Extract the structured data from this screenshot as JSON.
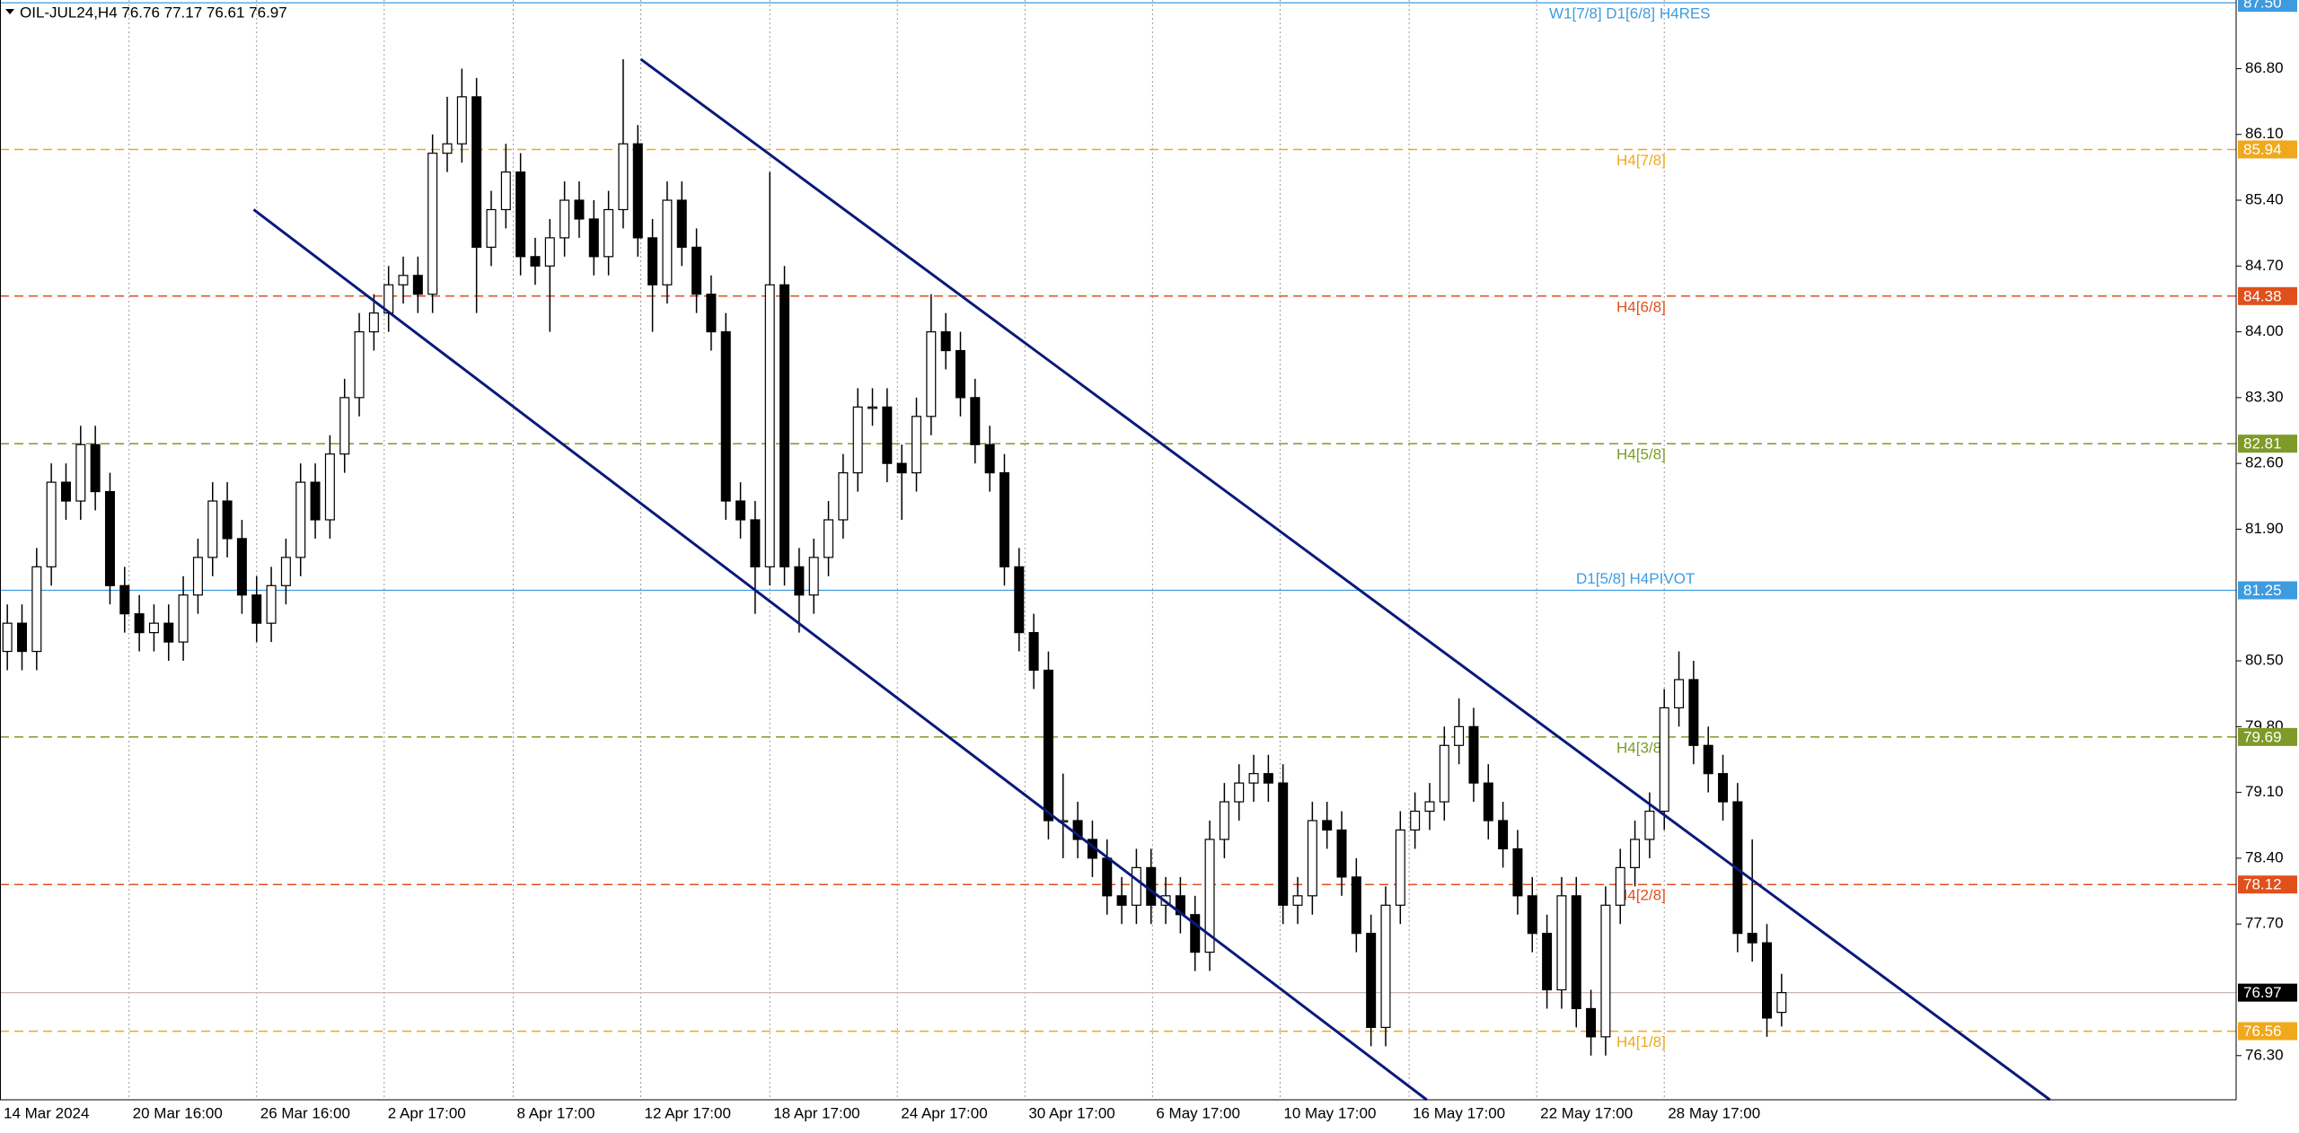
{
  "chart_data": {
    "type": "candlestick",
    "title": "OIL-JUL24,H4  76.76 77.17 76.61 76.97",
    "open": [
      80.6,
      80.9,
      80.6,
      81.5,
      82.4,
      82.2,
      82.8,
      82.3,
      81.3,
      81.0,
      80.8,
      80.9,
      80.7,
      81.2,
      81.6,
      82.2,
      81.8,
      81.2,
      80.9,
      81.3,
      81.6,
      82.4,
      82.0,
      82.7,
      83.3,
      84.0,
      84.2,
      84.5,
      84.6,
      84.4,
      85.9,
      86.0,
      86.5,
      84.9,
      85.3,
      85.7,
      84.8,
      84.7,
      85.0,
      85.4,
      85.2,
      84.8,
      85.3,
      86.0,
      85.0,
      84.5,
      85.4,
      84.9,
      84.4,
      84.0,
      82.2,
      82.0,
      81.5,
      84.5,
      81.5,
      81.2,
      81.6,
      82.0,
      82.5,
      83.2,
      83.2,
      82.6,
      82.5,
      83.1,
      84.0,
      83.8,
      83.3,
      82.8,
      82.5,
      81.5,
      80.8,
      80.4,
      78.8,
      78.8,
      78.6,
      78.4,
      78.0,
      77.9,
      78.3,
      77.9,
      78.0,
      77.8,
      77.4,
      78.6,
      79.0,
      79.2,
      79.3,
      79.2,
      77.9,
      78.0,
      78.8,
      78.7,
      78.2,
      77.6,
      76.6,
      77.9,
      78.7,
      78.9,
      79.0,
      79.6,
      79.8,
      79.2,
      78.8,
      78.5,
      78.0,
      77.6,
      77.0,
      78.0,
      76.8,
      76.5,
      77.9,
      78.3,
      78.6,
      78.9,
      80.0,
      80.3,
      79.6,
      79.3,
      79.0,
      77.6,
      77.5,
      76.76
    ],
    "high": [
      81.1,
      81.1,
      81.7,
      82.6,
      82.6,
      83.0,
      83.0,
      82.5,
      81.5,
      81.2,
      81.1,
      81.1,
      81.4,
      81.8,
      82.4,
      82.4,
      82.0,
      81.4,
      81.5,
      81.8,
      82.6,
      82.6,
      82.9,
      83.5,
      84.2,
      84.4,
      84.7,
      84.8,
      84.8,
      86.1,
      86.5,
      86.8,
      86.7,
      85.5,
      86.0,
      85.9,
      85.0,
      85.2,
      85.6,
      85.6,
      85.4,
      85.5,
      86.9,
      86.2,
      85.2,
      85.6,
      85.6,
      85.1,
      84.6,
      84.2,
      82.4,
      82.2,
      85.7,
      84.7,
      81.7,
      81.8,
      82.2,
      82.7,
      83.4,
      83.4,
      83.4,
      82.8,
      83.3,
      84.4,
      84.2,
      84.0,
      83.5,
      83.0,
      82.7,
      81.7,
      81.0,
      80.6,
      79.3,
      79.0,
      78.8,
      78.6,
      78.2,
      78.5,
      78.5,
      78.2,
      78.2,
      78.0,
      78.8,
      79.2,
      79.4,
      79.5,
      79.5,
      79.4,
      78.2,
      79.0,
      79.0,
      78.9,
      78.4,
      77.8,
      78.1,
      78.9,
      79.1,
      79.2,
      79.8,
      80.1,
      80.0,
      79.4,
      79.0,
      78.7,
      78.2,
      77.8,
      78.2,
      78.2,
      77.0,
      78.1,
      78.5,
      78.8,
      79.1,
      80.2,
      80.6,
      80.5,
      79.8,
      79.5,
      79.2,
      78.6,
      77.7,
      77.17
    ],
    "low": [
      80.4,
      80.4,
      80.4,
      81.3,
      82.0,
      82.0,
      82.1,
      81.1,
      80.8,
      80.6,
      80.6,
      80.5,
      80.5,
      81.0,
      81.4,
      81.6,
      81.0,
      80.7,
      80.7,
      81.1,
      81.4,
      81.8,
      81.8,
      82.5,
      83.1,
      83.8,
      84.0,
      84.3,
      84.2,
      84.2,
      85.7,
      85.8,
      84.2,
      84.7,
      85.1,
      84.6,
      84.5,
      84.0,
      84.8,
      85.0,
      84.6,
      84.6,
      85.1,
      84.8,
      84.0,
      84.3,
      84.7,
      84.2,
      83.8,
      82.0,
      81.8,
      81.0,
      81.3,
      81.3,
      80.8,
      81.0,
      81.4,
      81.8,
      82.3,
      83.0,
      82.4,
      82.0,
      82.3,
      82.9,
      83.6,
      83.1,
      82.6,
      82.3,
      81.3,
      80.6,
      80.2,
      78.6,
      78.4,
      78.4,
      78.2,
      77.8,
      77.7,
      77.7,
      77.7,
      77.7,
      77.6,
      77.2,
      77.2,
      78.4,
      78.8,
      79.0,
      79.0,
      77.7,
      77.7,
      77.8,
      78.5,
      78.0,
      77.4,
      76.4,
      76.4,
      77.7,
      78.5,
      78.7,
      78.8,
      79.4,
      79.0,
      78.6,
      78.3,
      77.8,
      77.4,
      76.8,
      76.8,
      76.6,
      76.3,
      76.3,
      77.7,
      78.1,
      78.4,
      78.7,
      79.8,
      79.4,
      79.1,
      78.8,
      77.4,
      77.3,
      76.5,
      76.61
    ],
    "close": [
      80.9,
      80.6,
      81.5,
      82.4,
      82.2,
      82.8,
      82.3,
      81.3,
      81.0,
      80.8,
      80.9,
      80.7,
      81.2,
      81.6,
      82.2,
      81.8,
      81.2,
      80.9,
      81.3,
      81.6,
      82.4,
      82.0,
      82.7,
      83.3,
      84.0,
      84.2,
      84.5,
      84.6,
      84.4,
      85.9,
      86.0,
      86.5,
      84.9,
      85.3,
      85.7,
      84.8,
      84.7,
      85.0,
      85.4,
      85.2,
      84.8,
      85.3,
      86.0,
      85.0,
      84.5,
      85.4,
      84.9,
      84.4,
      84.0,
      82.2,
      82.0,
      81.5,
      84.5,
      81.5,
      81.2,
      81.6,
      82.0,
      82.5,
      83.2,
      83.2,
      82.6,
      82.5,
      83.1,
      84.0,
      83.8,
      83.3,
      82.8,
      82.5,
      81.5,
      80.8,
      80.4,
      78.8,
      78.8,
      78.6,
      78.4,
      78.0,
      77.9,
      78.3,
      77.9,
      78.0,
      77.8,
      77.4,
      78.6,
      79.0,
      79.2,
      79.3,
      79.2,
      77.9,
      78.0,
      78.8,
      78.7,
      78.2,
      77.6,
      76.6,
      77.9,
      78.7,
      78.9,
      79.0,
      79.6,
      79.8,
      79.2,
      78.8,
      78.5,
      78.0,
      77.6,
      77.0,
      78.0,
      76.8,
      76.5,
      77.9,
      78.3,
      78.6,
      78.9,
      80.0,
      80.3,
      79.6,
      79.3,
      79.0,
      77.6,
      77.5,
      76.7,
      76.97
    ],
    "ylim": [
      75.83,
      87.53
    ],
    "yticks": [
      {
        "value": 86.8,
        "label": "86.80"
      },
      {
        "value": 86.1,
        "label": "86.10"
      },
      {
        "value": 85.4,
        "label": "85.40"
      },
      {
        "value": 84.7,
        "label": "84.70"
      },
      {
        "value": 84.0,
        "label": "84.00"
      },
      {
        "value": 83.3,
        "label": "83.30"
      },
      {
        "value": 82.6,
        "label": "82.60"
      },
      {
        "value": 81.9,
        "label": "81.90"
      },
      {
        "value": 80.5,
        "label": "80.50"
      },
      {
        "value": 79.8,
        "label": "79.80"
      },
      {
        "value": 79.1,
        "label": "79.10"
      },
      {
        "value": 78.4,
        "label": "78.40"
      },
      {
        "value": 77.7,
        "label": "77.70"
      },
      {
        "value": 76.3,
        "label": "76.30"
      }
    ],
    "xlim": [
      0,
      152.5
    ],
    "xticks": [
      {
        "value": 0,
        "label": "14 Mar 2024"
      },
      {
        "value": 8.8,
        "label": "20 Mar 16:00"
      },
      {
        "value": 17.5,
        "label": "26 Mar 16:00"
      },
      {
        "value": 26.2,
        "label": "2 Apr 17:00"
      },
      {
        "value": 35,
        "label": "8 Apr 17:00"
      },
      {
        "value": 43.7,
        "label": "12 Apr 17:00"
      },
      {
        "value": 52.5,
        "label": "18 Apr 17:00"
      },
      {
        "value": 61.2,
        "label": "24 Apr 17:00"
      },
      {
        "value": 69.9,
        "label": "30 Apr 17:00"
      },
      {
        "value": 78.6,
        "label": "6 May 17:00"
      },
      {
        "value": 87.3,
        "label": "10 May 17:00"
      },
      {
        "value": 96.1,
        "label": "16 May 17:00"
      },
      {
        "value": 104.8,
        "label": "22 May 17:00"
      },
      {
        "value": 113.5,
        "label": "28 May 17:00"
      }
    ],
    "levels": [
      {
        "value": 87.5,
        "value_label": "87.50",
        "label": "W1[7/8] D1[6/8] H4RES",
        "color": "#3d9be0",
        "style": "solid"
      },
      {
        "value": 85.94,
        "label": "H4[7/8]",
        "color": "#f0a81c",
        "style": "dashed"
      },
      {
        "value": 84.38,
        "label": "H4[6/8]",
        "color": "#e0501c",
        "style": "dashed"
      },
      {
        "value": 82.81,
        "label": "H4[5/8]",
        "color": "#7e9a28",
        "style": "dashed"
      },
      {
        "value": 81.25,
        "label": "D1[5/8] H4PIVOT",
        "color": "#3d9be0",
        "style": "solid"
      },
      {
        "value": 79.69,
        "label": "H4[3/8]",
        "color": "#7e9a28",
        "style": "dashed"
      },
      {
        "value": 78.12,
        "label": "H4[2/8]",
        "color": "#e0501c",
        "style": "dashed"
      },
      {
        "value": 76.56,
        "label": "H4[1/8]",
        "color": "#f0a81c",
        "style": "dashed"
      },
      {
        "value": 76.97,
        "color": "#000000",
        "style": "current"
      }
    ],
    "trendlines": [
      {
        "x": [
          43.7,
          139.8
        ],
        "y": [
          86.9,
          75.83
        ],
        "color": "#0a1a7a"
      },
      {
        "x": [
          17.3,
          97.3
        ],
        "y": [
          85.3,
          75.83
        ],
        "color": "#0a1a7a"
      }
    ]
  }
}
